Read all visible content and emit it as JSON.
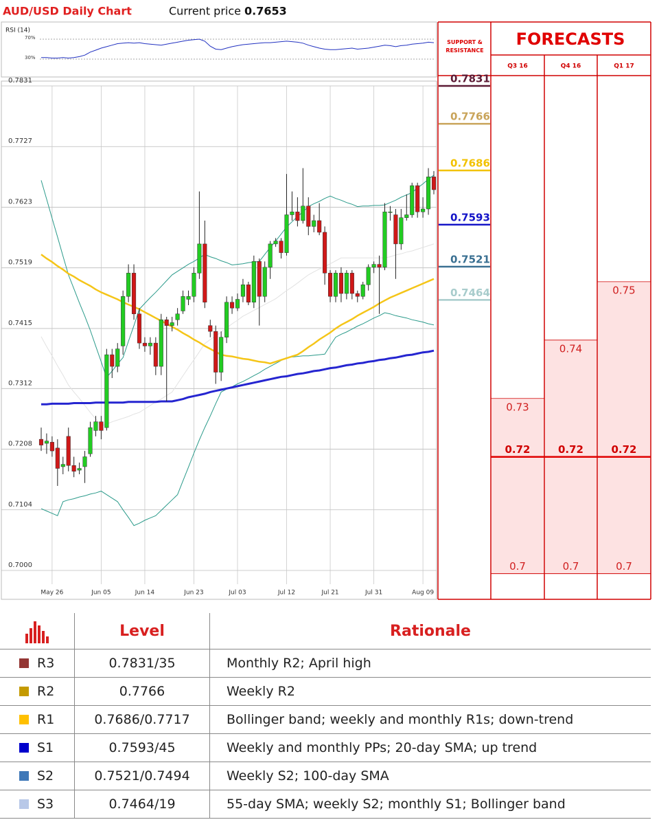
{
  "header": {
    "title": "AUD/USD Daily Chart",
    "current_price_label": "Current price",
    "current_price": 0.7653
  },
  "chart_data": [
    {
      "type": "candlestick",
      "categories": [
        null,
        null,
        "May 26",
        null,
        null,
        null,
        null,
        null,
        null,
        null,
        null,
        "Jun 05",
        null,
        null,
        null,
        null,
        null,
        null,
        null,
        "Jun 14",
        null,
        null,
        null,
        null,
        null,
        null,
        null,
        null,
        "Jun 23",
        null,
        null,
        null,
        null,
        null,
        null,
        null,
        "Jul 03",
        null,
        null,
        null,
        null,
        null,
        null,
        null,
        null,
        "Jul 12",
        null,
        null,
        null,
        null,
        null,
        null,
        null,
        "Jul 21",
        null,
        null,
        null,
        null,
        null,
        null,
        null,
        "Jul 31",
        null,
        null,
        null,
        null,
        null,
        null,
        null,
        null,
        "Aug 09",
        null,
        null
      ],
      "open": [
        0.7225,
        0.7218,
        0.722,
        0.721,
        0.7178,
        0.723,
        0.718,
        0.7172,
        0.7178,
        0.72,
        0.724,
        0.7255,
        0.7245,
        0.737,
        0.735,
        0.7385,
        0.747,
        0.751,
        0.744,
        0.739,
        0.7385,
        0.739,
        0.735,
        0.743,
        0.742,
        0.743,
        0.7445,
        0.7465,
        0.747,
        0.751,
        0.756,
        0.742,
        0.741,
        0.734,
        0.74,
        0.746,
        0.745,
        0.747,
        0.749,
        0.746,
        0.753,
        0.747,
        0.752,
        0.756,
        0.7565,
        0.7545,
        0.761,
        0.7615,
        0.76,
        0.7625,
        0.759,
        0.76,
        0.758,
        0.751,
        0.747,
        0.751,
        0.7475,
        0.751,
        0.7475,
        0.747,
        0.749,
        0.752,
        0.7525,
        0.752,
        0.7615,
        0.761,
        0.756,
        0.7605,
        0.761,
        0.766,
        0.7615,
        0.762,
        0.7675
      ],
      "high": [
        0.7245,
        0.7235,
        0.723,
        0.7225,
        0.7195,
        0.7245,
        0.7195,
        0.7185,
        0.7205,
        0.7255,
        0.7265,
        0.7265,
        0.738,
        0.738,
        0.739,
        0.748,
        0.7525,
        0.7525,
        0.745,
        0.74,
        0.74,
        0.74,
        0.744,
        0.7435,
        0.7435,
        0.745,
        0.748,
        0.748,
        0.752,
        0.765,
        0.76,
        0.743,
        0.742,
        0.741,
        0.747,
        0.747,
        0.7475,
        0.75,
        0.7495,
        0.754,
        0.7535,
        0.753,
        0.7565,
        0.757,
        0.757,
        0.768,
        0.765,
        0.764,
        0.769,
        0.764,
        0.761,
        0.763,
        0.759,
        0.7515,
        0.7515,
        0.752,
        0.7515,
        0.7515,
        0.748,
        0.7495,
        0.7525,
        0.753,
        0.754,
        0.763,
        0.7625,
        0.762,
        0.762,
        0.7645,
        0.7665,
        0.7665,
        0.764,
        0.769,
        0.7685
      ],
      "low": [
        0.7205,
        0.72,
        0.7195,
        0.7145,
        0.7165,
        0.717,
        0.716,
        0.7165,
        0.715,
        0.7195,
        0.723,
        0.7225,
        0.724,
        0.733,
        0.734,
        0.737,
        0.746,
        0.743,
        0.738,
        0.7375,
        0.737,
        0.7335,
        0.7335,
        0.729,
        0.741,
        0.742,
        0.744,
        0.7455,
        0.746,
        0.75,
        0.745,
        0.74,
        0.732,
        0.7325,
        0.739,
        0.744,
        0.7445,
        0.746,
        0.7455,
        0.745,
        0.742,
        0.746,
        0.75,
        0.7555,
        0.7535,
        0.754,
        0.76,
        0.759,
        0.7595,
        0.7575,
        0.758,
        0.7575,
        0.749,
        0.746,
        0.746,
        0.746,
        0.7465,
        0.7465,
        0.746,
        0.7465,
        0.748,
        0.751,
        0.744,
        0.7515,
        0.76,
        0.75,
        0.755,
        0.76,
        0.7605,
        0.7605,
        0.7605,
        0.761,
        0.7645
      ],
      "close": [
        0.7215,
        0.7222,
        0.7205,
        0.7175,
        0.7182,
        0.718,
        0.717,
        0.7175,
        0.7195,
        0.7245,
        0.7255,
        0.724,
        0.737,
        0.735,
        0.738,
        0.747,
        0.751,
        0.744,
        0.739,
        0.7385,
        0.739,
        0.735,
        0.743,
        0.742,
        0.7425,
        0.744,
        0.747,
        0.747,
        0.751,
        0.756,
        0.746,
        0.741,
        0.734,
        0.74,
        0.746,
        0.745,
        0.7465,
        0.749,
        0.746,
        0.753,
        0.747,
        0.752,
        0.756,
        0.7565,
        0.7545,
        0.761,
        0.7615,
        0.76,
        0.7625,
        0.759,
        0.76,
        0.758,
        0.751,
        0.747,
        0.751,
        0.7475,
        0.751,
        0.7475,
        0.747,
        0.749,
        0.752,
        0.7525,
        0.752,
        0.7615,
        0.7615,
        0.756,
        0.7605,
        0.761,
        0.766,
        0.7615,
        0.762,
        0.7675,
        0.7653
      ],
      "up_color": "#22cc22",
      "down_color": "#d01818",
      "ylim": [
        0.7,
        0.7831
      ],
      "yticks": [
        0.7831,
        0.7727,
        0.7623,
        0.7519,
        0.7415,
        0.7312,
        0.7208,
        0.7104,
        {
          "value": 0.7,
          "label": "0.7000"
        }
      ],
      "grid": true,
      "series": [
        {
          "color": "#2a9a8a",
          "width": 1,
          "values": [
            0.7669,
            0.7637,
            0.7604,
            0.7572,
            0.7539,
            0.7507,
            0.7483,
            0.7459,
            0.7436,
            0.7412,
            0.7385,
            0.7358,
            0.7331,
            0.7342,
            0.7354,
            0.7365,
            0.7393,
            0.742,
            0.7448,
            0.7458,
            0.7468,
            0.7477,
            0.7487,
            0.7497,
            0.7507,
            0.7513,
            0.7519,
            0.7525,
            0.753,
            0.7536,
            0.7542,
            0.7538,
            0.7535,
            0.7531,
            0.7528,
            0.7524,
            0.7525,
            0.7526,
            0.7528,
            0.7529,
            0.753,
            0.7542,
            0.7554,
            0.7565,
            0.7577,
            0.7589,
            0.7598,
            0.7607,
            0.7615,
            0.7624,
            0.7629,
            0.7633,
            0.7638,
            0.7642,
            0.7638,
            0.7635,
            0.7631,
            0.7628,
            0.7624,
            0.7625,
            0.7625,
            0.7626,
            0.7626,
            0.7627,
            0.7631,
            0.7635,
            0.764,
            0.7644,
            0.7648,
            0.7656,
            0.7663,
            0.7671,
            0.7678
          ]
        },
        {
          "color": "#2a9a8a",
          "width": 1,
          "values": [
            0.7106,
            0.7102,
            0.7098,
            0.7094,
            0.7118,
            0.7121,
            0.7123,
            0.7126,
            0.7128,
            0.7131,
            0.7133,
            0.7136,
            0.713,
            0.7124,
            0.7118,
            0.7104,
            0.7091,
            0.7077,
            0.7081,
            0.7086,
            0.709,
            0.7094,
            0.7103,
            0.7112,
            0.7121,
            0.713,
            0.7154,
            0.7177,
            0.7201,
            0.7224,
            0.7245,
            0.7265,
            0.7286,
            0.7306,
            0.7311,
            0.7315,
            0.732,
            0.7324,
            0.7329,
            0.7334,
            0.7339,
            0.7345,
            0.735,
            0.7355,
            0.736,
            0.7365,
            0.7366,
            0.7367,
            0.7368,
            0.7368,
            0.7369,
            0.737,
            0.7371,
            0.7386,
            0.74,
            0.7405,
            0.7409,
            0.7414,
            0.7419,
            0.7423,
            0.7428,
            0.7433,
            0.7437,
            0.7442,
            0.744,
            0.7437,
            0.7435,
            0.7433,
            0.743,
            0.7428,
            0.7426,
            0.7423,
            0.7421
          ]
        },
        {
          "color": "#e2e2e2",
          "width": 1,
          "values": [
            0.7401,
            0.7384,
            0.7368,
            0.7351,
            0.7335,
            0.7318,
            0.7306,
            0.7295,
            0.7283,
            0.7271,
            0.726,
            0.7248,
            0.7251,
            0.7255,
            0.7258,
            0.7261,
            0.7264,
            0.7268,
            0.7271,
            0.7277,
            0.7283,
            0.7289,
            0.7294,
            0.73,
            0.7306,
            0.732,
            0.7334,
            0.7348,
            0.7361,
            0.7375,
            0.7389,
            0.7396,
            0.7402,
            0.7409,
            0.7416,
            0.7423,
            0.7429,
            0.7436,
            0.7441,
            0.7446,
            0.7451,
            0.7456,
            0.7461,
            0.7466,
            0.7473,
            0.748,
            0.7486,
            0.7493,
            0.75,
            0.7507,
            0.7512,
            0.7517,
            0.7521,
            0.7526,
            0.7531,
            0.7536,
            0.7536,
            0.7536,
            0.7536,
            0.7536,
            0.7536,
            0.7536,
            0.7536,
            0.7536,
            0.7538,
            0.7541,
            0.7543,
            0.7546,
            0.7548,
            0.7551,
            0.7554,
            0.7557,
            0.756
          ]
        },
        {
          "color": "#f5c518",
          "width": 2.5,
          "values": [
            0.7542,
            0.7535,
            0.7529,
            0.7522,
            0.7516,
            0.7509,
            0.7504,
            0.7498,
            0.7493,
            0.7488,
            0.7482,
            0.7477,
            0.7473,
            0.7469,
            0.7465,
            0.746,
            0.7456,
            0.7452,
            0.7448,
            0.7443,
            0.7438,
            0.7433,
            0.7428,
            0.7423,
            0.7418,
            0.7413,
            0.7407,
            0.7402,
            0.7396,
            0.7391,
            0.7385,
            0.738,
            0.7375,
            0.737,
            0.7368,
            0.7367,
            0.7365,
            0.7363,
            0.7362,
            0.736,
            0.7358,
            0.7357,
            0.7355,
            0.7358,
            0.7361,
            0.7364,
            0.7367,
            0.737,
            0.7376,
            0.7383,
            0.7389,
            0.7396,
            0.7402,
            0.7408,
            0.7415,
            0.7421,
            0.7426,
            0.7431,
            0.7437,
            0.7442,
            0.7447,
            0.7452,
            0.7458,
            0.7463,
            0.7468,
            0.7472,
            0.7476,
            0.748,
            0.7484,
            0.7488,
            0.7492,
            0.7496,
            0.75
          ]
        },
        {
          "color": "#2525d0",
          "width": 3,
          "values": [
            0.7285,
            0.7285,
            0.7286,
            0.7286,
            0.7286,
            0.7286,
            0.7287,
            0.7287,
            0.7287,
            0.7287,
            0.7288,
            0.7288,
            0.7288,
            0.7288,
            0.7288,
            0.7288,
            0.7289,
            0.7289,
            0.7289,
            0.7289,
            0.7289,
            0.7289,
            0.729,
            0.729,
            0.729,
            0.7292,
            0.7294,
            0.7297,
            0.7299,
            0.7301,
            0.7303,
            0.7306,
            0.7308,
            0.731,
            0.7312,
            0.7314,
            0.7316,
            0.7318,
            0.732,
            0.7322,
            0.7324,
            0.7326,
            0.7328,
            0.733,
            0.7332,
            0.7333,
            0.7335,
            0.7337,
            0.7338,
            0.734,
            0.7342,
            0.7343,
            0.7345,
            0.7347,
            0.7348,
            0.735,
            0.7352,
            0.7353,
            0.7355,
            0.7356,
            0.7358,
            0.7359,
            0.7361,
            0.7362,
            0.7364,
            0.7365,
            0.7367,
            0.7369,
            0.737,
            0.7372,
            0.7374,
            0.7375,
            0.7377
          ]
        }
      ]
    },
    {
      "type": "line",
      "title": "RSI (14)",
      "color": "#2030c0",
      "ylim": [
        30,
        70
      ],
      "yticks": [
        {
          "value": 70,
          "label": "70%"
        },
        {
          "value": 30,
          "label": "30%"
        }
      ],
      "values": [
        33,
        33,
        32,
        32,
        33,
        32,
        33,
        35,
        38,
        44,
        48,
        52,
        55,
        58,
        61,
        62,
        63,
        62,
        63,
        61,
        60,
        59,
        58,
        60,
        62,
        64,
        66,
        68,
        69,
        70,
        66,
        56,
        50,
        49,
        52,
        55,
        57,
        59,
        60,
        61,
        62,
        63,
        63,
        64,
        65,
        66,
        65,
        64,
        62,
        58,
        55,
        52,
        50,
        49,
        49,
        50,
        51,
        52,
        50,
        51,
        52,
        54,
        56,
        58,
        57,
        55,
        57,
        58,
        60,
        61,
        62,
        64,
        63
      ]
    },
    {
      "type": "range",
      "title": "FORECASTS",
      "categories": [
        "Q3 16",
        "Q4 16",
        "Q1 17"
      ],
      "low": [
        0.7,
        0.7,
        0.7
      ],
      "mid": [
        0.72,
        0.72,
        0.72
      ],
      "high": [
        0.73,
        0.74,
        0.75
      ],
      "ylim": [
        0.6956,
        0.7853
      ],
      "color": "#fde2e2",
      "line_color": "#e00000"
    }
  ],
  "support_resistance": {
    "title": "SUPPORT & RESISTANCE",
    "levels": [
      {
        "value": 0.7831,
        "color": "#5c1a34"
      },
      {
        "value": 0.7766,
        "color": "#c9a45a"
      },
      {
        "value": 0.7686,
        "color": "#f2c200"
      },
      {
        "value": 0.7593,
        "color": "#1414c8"
      },
      {
        "value": 0.7521,
        "color": "#3a7092"
      },
      {
        "value": 0.7464,
        "color": "#a8cccc"
      }
    ]
  },
  "table": {
    "header": [
      "Level",
      "Rationale"
    ],
    "rows": [
      {
        "color": "#943634",
        "cells": [
          "R3",
          "0.7831/35",
          "Monthly R2; April high"
        ]
      },
      {
        "color": "#c49a00",
        "cells": [
          "R2",
          "0.7766",
          "Weekly R2"
        ]
      },
      {
        "color": "#ffc000",
        "cells": [
          "R1",
          "0.7686/0.7717",
          "Bollinger band; weekly and monthly R1s; down-trend"
        ]
      },
      {
        "color": "#0000cc",
        "cells": [
          "S1",
          "0.7593/45",
          "Weekly and monthly PPs; 20-day SMA; up trend"
        ]
      },
      {
        "color": "#3f78b8",
        "cells": [
          "S2",
          "0.7521/0.7494",
          "Weekly S2; 100-day SMA"
        ]
      },
      {
        "color": "#b8c8e8",
        "cells": [
          "S3",
          "0.7464/19",
          "55-day SMA; weekly S2; monthly S1; Bollinger band"
        ]
      }
    ]
  }
}
